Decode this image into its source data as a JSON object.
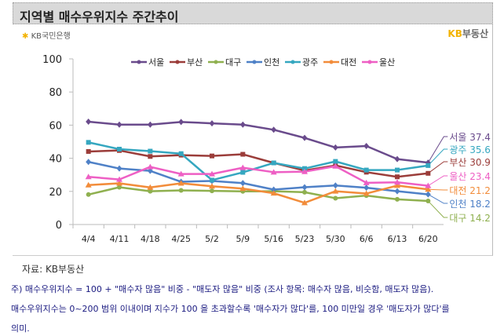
{
  "title": "지역별 매수우위지수 주간추이",
  "logo_left": {
    "mark": "✱",
    "text": "KB국민은행"
  },
  "logo_right": {
    "kb": "KB",
    "text": "부동산"
  },
  "source": "자료: KB부동산",
  "notes": [
    "주) 매수우위지수 = 100 + \"매수자 많음\" 비중 - \"매도자 많음\" 비중   (조사 항목: 매수자 많음, 비슷함, 매도자 많음).",
    "매수우위지수는 0~200 범위 이내이며 지수가 100 을 초과할수록 '매수자가 많다'를, 100 미만일 경우 '매도자가 많다'를",
    "의미."
  ],
  "chart_data": {
    "type": "line",
    "title": "",
    "xlabel": "",
    "ylabel": "",
    "ylim": [
      0,
      100
    ],
    "yticks": [
      0,
      20,
      40,
      60,
      80,
      100
    ],
    "grid": false,
    "legend": "top",
    "categories": [
      "4/4",
      "4/11",
      "4/18",
      "4/25",
      "5/2",
      "5/9",
      "5/16",
      "5/23",
      "5/30",
      "6/6",
      "6/13",
      "6/20"
    ],
    "series": [
      {
        "name": "서울",
        "color": "#6a4b8c",
        "marker": "diamond",
        "end_label": "서울 37.4",
        "values": [
          62.1,
          60.3,
          60.3,
          61.9,
          61.1,
          60.3,
          57.2,
          52.3,
          46.5,
          47.4,
          39.5,
          37.4
        ]
      },
      {
        "name": "부산",
        "color": "#9b3d3a",
        "marker": "square",
        "end_label": "부산 30.9",
        "values": [
          44.1,
          44.7,
          41.1,
          41.9,
          41.4,
          42.4,
          37.2,
          32.6,
          35.7,
          31.6,
          28.8,
          30.9
        ]
      },
      {
        "name": "대구",
        "color": "#8fb04f",
        "marker": "circle",
        "end_label": "대구 14.2",
        "values": [
          18.1,
          22.5,
          20.1,
          20.6,
          20.3,
          20.0,
          20.1,
          19.5,
          15.9,
          17.5,
          15.2,
          14.2
        ]
      },
      {
        "name": "인천",
        "color": "#4f81c7",
        "marker": "diamond",
        "end_label": "인천 18.2",
        "values": [
          37.8,
          33.8,
          32.4,
          25.8,
          26.3,
          25.0,
          21.1,
          22.5,
          23.6,
          22.2,
          20.1,
          18.2
        ]
      },
      {
        "name": "광주",
        "color": "#35a7c0",
        "marker": "square",
        "end_label": "광주 35.6",
        "values": [
          49.6,
          45.5,
          44.3,
          42.8,
          26.8,
          31.5,
          37.2,
          33.8,
          38.1,
          32.9,
          32.9,
          35.6
        ]
      },
      {
        "name": "대전",
        "color": "#f28c3a",
        "marker": "triangle",
        "end_label": "대전 21.2",
        "values": [
          23.8,
          24.9,
          22.4,
          24.9,
          23.1,
          21.7,
          18.9,
          13.1,
          20.1,
          18.7,
          23.5,
          21.2
        ]
      },
      {
        "name": "울산",
        "color": "#ee5fc4",
        "marker": "triangle",
        "end_label": "울산 23.4",
        "values": [
          28.8,
          27.2,
          34.8,
          30.5,
          30.5,
          34.3,
          31.6,
          31.9,
          35.2,
          25.2,
          25.5,
          23.4
        ]
      }
    ]
  }
}
